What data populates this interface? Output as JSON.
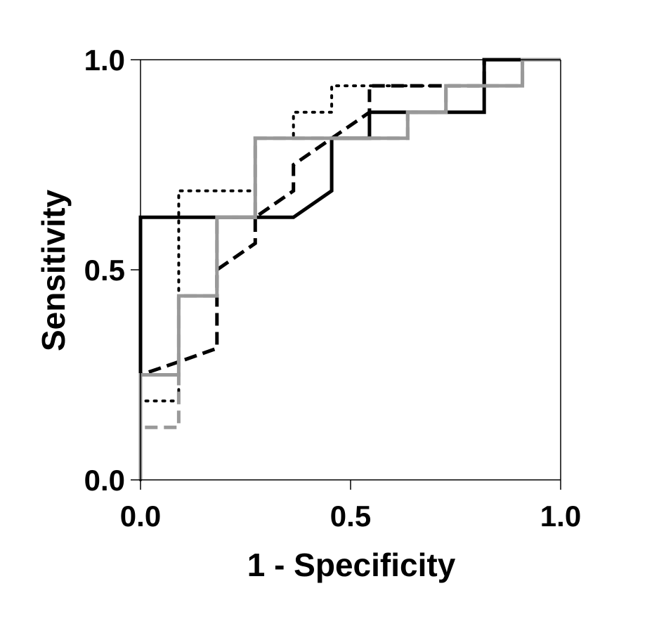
{
  "chart_data": {
    "type": "line",
    "title": "",
    "xlabel": "1 - Specificity",
    "ylabel": "Sensitivity",
    "xlim": [
      0,
      1
    ],
    "ylim": [
      0,
      1
    ],
    "x_ticks": [
      "0.0",
      "0.5",
      "1.0"
    ],
    "y_ticks": [
      "0.0",
      "0.5",
      "1.0"
    ],
    "grid": false,
    "legend": "none",
    "series": [
      {
        "style": "solid",
        "color": "#000000",
        "points": [
          [
            0,
            0
          ],
          [
            0,
            0.625
          ],
          [
            0.364,
            0.625
          ],
          [
            0.455,
            0.688
          ],
          [
            0.455,
            0.813
          ],
          [
            0.545,
            0.813
          ],
          [
            0.545,
            0.875
          ],
          [
            0.818,
            0.875
          ],
          [
            0.818,
            1.0
          ],
          [
            1.0,
            1.0
          ]
        ]
      },
      {
        "style": "dotted",
        "color": "#000000",
        "points": [
          [
            0,
            0
          ],
          [
            0,
            0.188
          ],
          [
            0.091,
            0.188
          ],
          [
            0.091,
            0.688
          ],
          [
            0.273,
            0.688
          ],
          [
            0.273,
            0.813
          ],
          [
            0.364,
            0.813
          ],
          [
            0.364,
            0.875
          ],
          [
            0.455,
            0.875
          ],
          [
            0.455,
            0.938
          ],
          [
            0.818,
            0.938
          ],
          [
            0.818,
            1.0
          ],
          [
            1.0,
            1.0
          ]
        ]
      },
      {
        "style": "dashed",
        "color": "#000000",
        "points": [
          [
            0,
            0
          ],
          [
            0,
            0.25
          ],
          [
            0.091,
            0.281
          ],
          [
            0.182,
            0.313
          ],
          [
            0.182,
            0.5
          ],
          [
            0.273,
            0.563
          ],
          [
            0.273,
            0.625
          ],
          [
            0.364,
            0.688
          ],
          [
            0.364,
            0.75
          ],
          [
            0.545,
            0.875
          ],
          [
            0.545,
            0.938
          ],
          [
            0.818,
            0.938
          ],
          [
            0.818,
            1.0
          ],
          [
            1.0,
            1.0
          ]
        ]
      },
      {
        "style": "solid",
        "color": "#999999",
        "points": [
          [
            0,
            0
          ],
          [
            0,
            0.25
          ],
          [
            0.091,
            0.25
          ],
          [
            0.091,
            0.438
          ],
          [
            0.182,
            0.438
          ],
          [
            0.182,
            0.625
          ],
          [
            0.273,
            0.625
          ],
          [
            0.273,
            0.813
          ],
          [
            0.636,
            0.813
          ],
          [
            0.636,
            0.875
          ],
          [
            0.727,
            0.875
          ],
          [
            0.727,
            0.938
          ],
          [
            0.909,
            0.938
          ],
          [
            0.909,
            1.0
          ],
          [
            1.0,
            1.0
          ]
        ]
      },
      {
        "style": "dashed",
        "color": "#999999",
        "points": [
          [
            0,
            0
          ],
          [
            0,
            0.125
          ],
          [
            0.091,
            0.125
          ],
          [
            0.091,
            0.438
          ],
          [
            0.182,
            0.438
          ],
          [
            0.182,
            0.625
          ],
          [
            0.273,
            0.625
          ],
          [
            0.273,
            0.813
          ],
          [
            0.636,
            0.813
          ],
          [
            0.636,
            0.875
          ],
          [
            0.727,
            0.875
          ],
          [
            0.727,
            0.938
          ],
          [
            0.909,
            0.938
          ],
          [
            0.909,
            1.0
          ],
          [
            1.0,
            1.0
          ]
        ]
      }
    ]
  }
}
